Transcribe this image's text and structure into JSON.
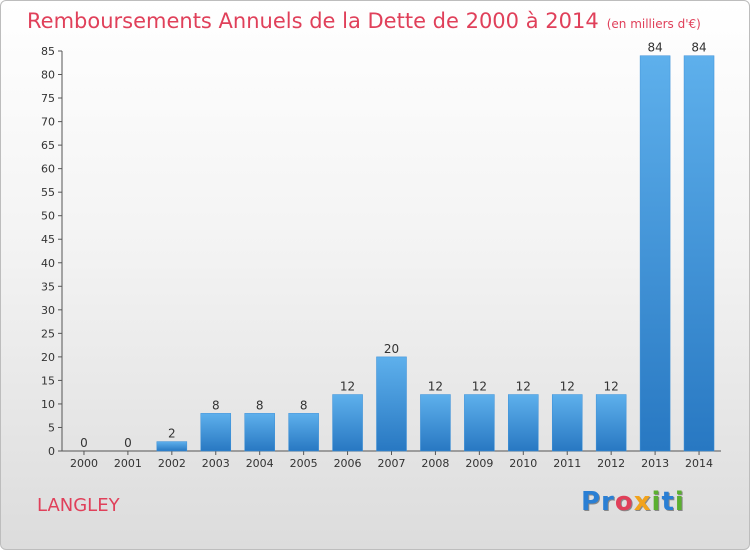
{
  "chart_data": {
    "type": "bar",
    "title": "Remboursements Annuels de la Dette de 2000 à 2014",
    "subtitle": "(en milliers d'€)",
    "categories": [
      "2000",
      "2001",
      "2002",
      "2003",
      "2004",
      "2005",
      "2006",
      "2007",
      "2008",
      "2009",
      "2010",
      "2011",
      "2012",
      "2013",
      "2014"
    ],
    "values": [
      0,
      0,
      2,
      8,
      8,
      8,
      12,
      20,
      12,
      12,
      12,
      12,
      12,
      84,
      84
    ],
    "ylim": [
      0,
      85
    ],
    "yticks": [
      0,
      5,
      10,
      15,
      20,
      25,
      30,
      35,
      40,
      45,
      50,
      55,
      60,
      65,
      70,
      75,
      80,
      85
    ],
    "grid": false,
    "bar_color": "#3a8fd8",
    "bar_color_light": "#5eb0ec",
    "bar_color_dark": "#2878c2"
  },
  "footer": {
    "commune": "LANGLEY",
    "logo_parts": [
      "Pr",
      "o",
      "x",
      "i",
      "t",
      "i"
    ]
  },
  "colors": {
    "title": "#e0405a"
  }
}
